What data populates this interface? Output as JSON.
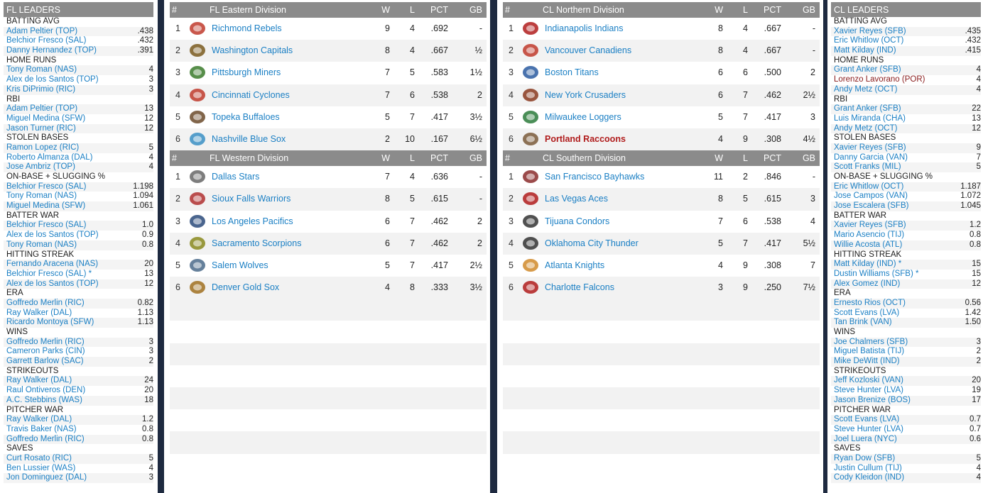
{
  "fl_leaders": {
    "title": "FL LEADERS",
    "categories": [
      {
        "name": "BATTING AVG",
        "rows": [
          [
            "Adam Peltier (TOP)",
            ".438"
          ],
          [
            "Belchior Fresco (SAL)",
            ".432"
          ],
          [
            "Danny Hernandez (TOP)",
            ".391"
          ]
        ]
      },
      {
        "name": "HOME RUNS",
        "rows": [
          [
            "Tony Roman (NAS)",
            "4"
          ],
          [
            "Alex de los Santos (TOP)",
            "3"
          ],
          [
            "Kris DiPrimio (RIC)",
            "3"
          ]
        ]
      },
      {
        "name": "RBI",
        "rows": [
          [
            "Adam Peltier (TOP)",
            "13"
          ],
          [
            "Miguel Medina (SFW)",
            "12"
          ],
          [
            "Jason Turner (RIC)",
            "12"
          ]
        ]
      },
      {
        "name": "STOLEN BASES",
        "rows": [
          [
            "Ramon Lopez (RIC)",
            "5"
          ],
          [
            "Roberto Almanza (DAL)",
            "4"
          ],
          [
            "Jose Ambriz (TOP)",
            "4"
          ]
        ]
      },
      {
        "name": "ON-BASE + SLUGGING %",
        "rows": [
          [
            "Belchior Fresco (SAL)",
            "1.198"
          ],
          [
            "Tony Roman (NAS)",
            "1.094"
          ],
          [
            "Miguel Medina (SFW)",
            "1.061"
          ]
        ]
      },
      {
        "name": "BATTER WAR",
        "rows": [
          [
            "Belchior Fresco (SAL)",
            "1.0"
          ],
          [
            "Alex de los Santos (TOP)",
            "0.9"
          ],
          [
            "Tony Roman (NAS)",
            "0.8"
          ]
        ]
      },
      {
        "name": "HITTING STREAK",
        "rows": [
          [
            "Fernando Aracena (NAS)",
            "20"
          ],
          [
            "Belchior Fresco (SAL) *",
            "13"
          ],
          [
            "Alex de los Santos (TOP)",
            "12"
          ]
        ]
      },
      {
        "name": "ERA",
        "rows": [
          [
            "Goffredo Merlin (RIC)",
            "0.82"
          ],
          [
            "Ray Walker (DAL)",
            "1.13"
          ],
          [
            "Ricardo Montoya (SFW)",
            "1.13"
          ]
        ]
      },
      {
        "name": "WINS",
        "rows": [
          [
            "Goffredo Merlin (RIC)",
            "3"
          ],
          [
            "Cameron Parks (CIN)",
            "3"
          ],
          [
            "Garrett Barlow (SAC)",
            "2"
          ]
        ]
      },
      {
        "name": "STRIKEOUTS",
        "rows": [
          [
            "Ray Walker (DAL)",
            "24"
          ],
          [
            "Raul Ontiveros (DEN)",
            "20"
          ],
          [
            "A.C. Stebbins (WAS)",
            "18"
          ]
        ]
      },
      {
        "name": "PITCHER WAR",
        "rows": [
          [
            "Ray Walker (DAL)",
            "1.2"
          ],
          [
            "Travis Baker (NAS)",
            "0.8"
          ],
          [
            "Goffredo Merlin (RIC)",
            "0.8"
          ]
        ]
      },
      {
        "name": "SAVES",
        "rows": [
          [
            "Curt Rosato (RIC)",
            "5"
          ],
          [
            "Ben Lussier (WAS)",
            "4"
          ],
          [
            "Jon Dominguez (DAL)",
            "3"
          ]
        ]
      }
    ]
  },
  "cl_leaders": {
    "title": "CL LEADERS",
    "categories": [
      {
        "name": "BATTING AVG",
        "rows": [
          [
            "Xavier Reyes (SFB)",
            ".435"
          ],
          [
            "Eric Whitlow (OCT)",
            ".432"
          ],
          [
            "Matt Kilday (IND)",
            ".415"
          ]
        ]
      },
      {
        "name": "HOME RUNS",
        "rows": [
          [
            "Grant Anker (SFB)",
            "4"
          ],
          [
            "Lorenzo Lavorano (POR)",
            "4"
          ],
          [
            "Andy Metz (OCT)",
            "4"
          ]
        ]
      },
      {
        "name": "RBI",
        "rows": [
          [
            "Grant Anker (SFB)",
            "22"
          ],
          [
            "Luis Miranda (CHA)",
            "13"
          ],
          [
            "Andy Metz (OCT)",
            "12"
          ]
        ]
      },
      {
        "name": "STOLEN BASES",
        "rows": [
          [
            "Xavier Reyes (SFB)",
            "9"
          ],
          [
            "Danny Garcia (VAN)",
            "7"
          ],
          [
            "Scott Franks (MIL)",
            "5"
          ]
        ]
      },
      {
        "name": "ON-BASE + SLUGGING %",
        "rows": [
          [
            "Eric Whitlow (OCT)",
            "1.187"
          ],
          [
            "Jose Campos (VAN)",
            "1.072"
          ],
          [
            "Jose Escalera (SFB)",
            "1.045"
          ]
        ]
      },
      {
        "name": "BATTER WAR",
        "rows": [
          [
            "Xavier Reyes (SFB)",
            "1.2"
          ],
          [
            "Mario Asencio (TIJ)",
            "0.8"
          ],
          [
            "Willie Acosta (ATL)",
            "0.8"
          ]
        ]
      },
      {
        "name": "HITTING STREAK",
        "rows": [
          [
            "Matt Kilday (IND) *",
            "15"
          ],
          [
            "Dustin Williams (SFB) *",
            "15"
          ],
          [
            "Alex Gomez (IND)",
            "12"
          ]
        ]
      },
      {
        "name": "ERA",
        "rows": [
          [
            "Ernesto Rios (OCT)",
            "0.56"
          ],
          [
            "Scott Evans (LVA)",
            "1.42"
          ],
          [
            "Tan Brink (VAN)",
            "1.50"
          ]
        ]
      },
      {
        "name": "WINS",
        "rows": [
          [
            "Joe Chalmers (SFB)",
            "3"
          ],
          [
            "Miguel Batista (TIJ)",
            "2"
          ],
          [
            "Mike DeWitt (IND)",
            "2"
          ]
        ]
      },
      {
        "name": "STRIKEOUTS",
        "rows": [
          [
            "Jeff Kozloski (VAN)",
            "20"
          ],
          [
            "Steve Hunter (LVA)",
            "19"
          ],
          [
            "Jason Brenize (BOS)",
            "17"
          ]
        ]
      },
      {
        "name": "PITCHER WAR",
        "rows": [
          [
            "Scott Evans (LVA)",
            "0.7"
          ],
          [
            "Steve Hunter (LVA)",
            "0.7"
          ],
          [
            "Joel Luera (NYC)",
            "0.6"
          ]
        ]
      },
      {
        "name": "SAVES",
        "rows": [
          [
            "Ryan Dow (SFB)",
            "5"
          ],
          [
            "Justin Cullum (TIJ)",
            "4"
          ],
          [
            "Cody Kleidon (IND)",
            "4"
          ]
        ]
      }
    ]
  },
  "divisions": {
    "headers": {
      "hash": "#",
      "w": "W",
      "l": "L",
      "pct": "PCT",
      "gb": "GB"
    },
    "fl_east": {
      "title": "FL Eastern Division",
      "teams": [
        {
          "rank": "1",
          "name": "Richmond Rebels",
          "w": "9",
          "l": "4",
          "pct": ".692",
          "gb": "-",
          "icon": "rebels-logo-icon",
          "color": "#c0392b"
        },
        {
          "rank": "2",
          "name": "Washington Capitals",
          "w": "8",
          "l": "4",
          "pct": ".667",
          "gb": "½",
          "icon": "capitals-logo-icon",
          "color": "#7a5a1e"
        },
        {
          "rank": "3",
          "name": "Pittsburgh Miners",
          "w": "7",
          "l": "5",
          "pct": ".583",
          "gb": "1½",
          "icon": "miners-logo-icon",
          "color": "#3a7a2a"
        },
        {
          "rank": "4",
          "name": "Cincinnati Cyclones",
          "w": "7",
          "l": "6",
          "pct": ".538",
          "gb": "2",
          "icon": "cyclones-logo-icon",
          "color": "#c0392b"
        },
        {
          "rank": "5",
          "name": "Topeka Buffaloes",
          "w": "5",
          "l": "7",
          "pct": ".417",
          "gb": "3½",
          "icon": "buffaloes-logo-icon",
          "color": "#6b4a2a"
        },
        {
          "rank": "6",
          "name": "Nashville Blue Sox",
          "w": "2",
          "l": "10",
          "pct": ".167",
          "gb": "6½",
          "icon": "blue-sox-logo-icon",
          "color": "#3a8fc4"
        }
      ]
    },
    "fl_west": {
      "title": "FL Western Division",
      "teams": [
        {
          "rank": "1",
          "name": "Dallas Stars",
          "w": "7",
          "l": "4",
          "pct": ".636",
          "gb": "-",
          "icon": "stars-logo-icon",
          "color": "#666666"
        },
        {
          "rank": "2",
          "name": "Sioux Falls Warriors",
          "w": "8",
          "l": "5",
          "pct": ".615",
          "gb": "-",
          "icon": "warriors-logo-icon",
          "color": "#b03030"
        },
        {
          "rank": "3",
          "name": "Los Angeles Pacifics",
          "w": "6",
          "l": "7",
          "pct": ".462",
          "gb": "2",
          "icon": "pacifics-logo-icon",
          "color": "#2a4a7a"
        },
        {
          "rank": "4",
          "name": "Sacramento Scorpions",
          "w": "6",
          "l": "7",
          "pct": ".462",
          "gb": "2",
          "icon": "scorpions-logo-icon",
          "color": "#8a8a1e"
        },
        {
          "rank": "5",
          "name": "Salem Wolves",
          "w": "5",
          "l": "7",
          "pct": ".417",
          "gb": "2½",
          "icon": "wolves-logo-icon",
          "color": "#4a6a8a"
        },
        {
          "rank": "6",
          "name": "Denver Gold Sox",
          "w": "4",
          "l": "8",
          "pct": ".333",
          "gb": "3½",
          "icon": "gold-sox-logo-icon",
          "color": "#a07020"
        }
      ]
    },
    "cl_north": {
      "title": "CL Northern Division",
      "teams": [
        {
          "rank": "1",
          "name": "Indianapolis Indians",
          "w": "8",
          "l": "4",
          "pct": ".667",
          "gb": "-",
          "icon": "indians-logo-icon",
          "color": "#b01c1c"
        },
        {
          "rank": "2",
          "name": "Vancouver Canadiens",
          "w": "8",
          "l": "4",
          "pct": ".667",
          "gb": "-",
          "icon": "canadiens-logo-icon",
          "color": "#c0392b"
        },
        {
          "rank": "3",
          "name": "Boston Titans",
          "w": "6",
          "l": "6",
          "pct": ".500",
          "gb": "2",
          "icon": "titans-logo-icon",
          "color": "#2a5aa0"
        },
        {
          "rank": "4",
          "name": "New York Crusaders",
          "w": "6",
          "l": "7",
          "pct": ".462",
          "gb": "2½",
          "icon": "crusaders-logo-icon",
          "color": "#8a3a1e"
        },
        {
          "rank": "5",
          "name": "Milwaukee Loggers",
          "w": "5",
          "l": "7",
          "pct": ".417",
          "gb": "3",
          "icon": "loggers-logo-icon",
          "color": "#2a7a3a"
        },
        {
          "rank": "6",
          "name": "Portland Raccoons",
          "w": "4",
          "l": "9",
          "pct": ".308",
          "gb": "4½",
          "icon": "raccoons-logo-icon",
          "color": "#7a5a3a",
          "highlight": true
        }
      ]
    },
    "cl_south": {
      "title": "CL Southern Division",
      "teams": [
        {
          "rank": "1",
          "name": "San Francisco Bayhawks",
          "w": "11",
          "l": "2",
          "pct": ".846",
          "gb": "-",
          "icon": "bayhawks-logo-icon",
          "color": "#8a2a2a"
        },
        {
          "rank": "2",
          "name": "Las Vegas Aces",
          "w": "8",
          "l": "5",
          "pct": ".615",
          "gb": "3",
          "icon": "aces-logo-icon",
          "color": "#b01c1c"
        },
        {
          "rank": "3",
          "name": "Tijuana Condors",
          "w": "7",
          "l": "6",
          "pct": ".538",
          "gb": "4",
          "icon": "condors-logo-icon",
          "color": "#333333"
        },
        {
          "rank": "4",
          "name": "Oklahoma City Thunder",
          "w": "5",
          "l": "7",
          "pct": ".417",
          "gb": "5½",
          "icon": "thunder-logo-icon",
          "color": "#333333"
        },
        {
          "rank": "5",
          "name": "Atlanta Knights",
          "w": "4",
          "l": "9",
          "pct": ".308",
          "gb": "7",
          "icon": "knights-logo-icon",
          "color": "#d08a2a"
        },
        {
          "rank": "6",
          "name": "Charlotte Falcons",
          "w": "3",
          "l": "9",
          "pct": ".250",
          "gb": "7½",
          "icon": "falcons-logo-icon",
          "color": "#b01c1c"
        }
      ]
    }
  },
  "colors": {
    "link": "#1a7fc4",
    "header": "#8b8b8b",
    "highlight": "#b01c1c",
    "frame": "#1e2a40"
  }
}
